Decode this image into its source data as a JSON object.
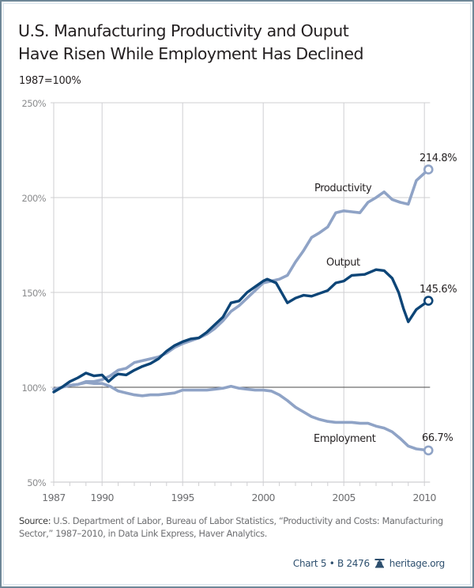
{
  "title_lines": [
    "U.S. Manufacturing Productivity and Ouput",
    "Have Risen While Employment Has Declined"
  ],
  "subtitle": "1987=100%",
  "colors": {
    "productivity": "#8fa3c6",
    "output": "#0d4577",
    "employment": "#8fa3c6",
    "grid": "#cfcfd2",
    "baseline": "#4a4a4a",
    "frame": "#6e8797",
    "footer": "#2d4f6e"
  },
  "chart_data": {
    "type": "line",
    "title": "U.S. Manufacturing Productivity and Ouput Have Risen While Employment Has Declined",
    "ylabel": "1987=100%",
    "xlabel": "",
    "xlim": [
      1987,
      2010.35
    ],
    "ylim": [
      50,
      250
    ],
    "grid": true,
    "x_ticks": [
      1987,
      1990,
      1995,
      2000,
      2005,
      2010
    ],
    "x_tick_labels": [
      "1987",
      "1990",
      "1995",
      "2000",
      "2005",
      "2010"
    ],
    "y_ticks": [
      50,
      100,
      150,
      200,
      250
    ],
    "y_tick_labels": [
      "50%",
      "100%",
      "150%",
      "200%",
      "250%"
    ],
    "reference_line": 100,
    "legend": "inline labels",
    "series": [
      {
        "name": "Productivity",
        "label": "Productivity",
        "end_label": "214.8%",
        "x": [
          1987,
          1987.5,
          1988,
          1988.5,
          1989,
          1989.5,
          1990,
          1990.5,
          1991,
          1991.5,
          1992,
          1992.5,
          1993,
          1993.5,
          1994,
          1994.5,
          1995,
          1995.5,
          1996,
          1996.5,
          1997,
          1997.5,
          1998,
          1998.5,
          1999,
          1999.5,
          2000,
          2000.5,
          2001,
          2001.5,
          2002,
          2002.5,
          2003,
          2003.5,
          2004,
          2004.5,
          2005,
          2005.5,
          2006,
          2006.5,
          2007,
          2007.5,
          2008,
          2008.5,
          2009,
          2009.5,
          2010.25
        ],
        "values": [
          99,
          100,
          101,
          101.5,
          103,
          103,
          104,
          106,
          109,
          110,
          113,
          114,
          115,
          116,
          118,
          121,
          123,
          124.5,
          126,
          128,
          131,
          135,
          140,
          143,
          147,
          151,
          155,
          156,
          157,
          159,
          166,
          172,
          179,
          181.5,
          184.5,
          192,
          193,
          192.5,
          192,
          197.5,
          200,
          203,
          199,
          197.5,
          196.5,
          209,
          214.8
        ]
      },
      {
        "name": "Output",
        "label": "Output",
        "end_label": "145.6%",
        "x": [
          1987,
          1987.5,
          1988,
          1988.5,
          1989,
          1989.5,
          1990,
          1990.4,
          1990.8,
          1991,
          1991.5,
          1992,
          1992.5,
          1993,
          1993.5,
          1994,
          1994.5,
          1995,
          1995.5,
          1996,
          1996.5,
          1997,
          1997.5,
          1998,
          1998.5,
          1999,
          1999.5,
          2000,
          2000.25,
          2000.8,
          2001.5,
          2002,
          2002.5,
          2003,
          2003.5,
          2004,
          2004.5,
          2005,
          2005.5,
          2006.3,
          2007,
          2007.5,
          2008,
          2008.4,
          2008.7,
          2009,
          2009.5,
          2010.25
        ],
        "values": [
          97.5,
          100,
          103,
          105,
          107.5,
          106,
          106.5,
          103,
          106,
          107,
          106.5,
          109,
          111,
          112.5,
          115,
          119,
          122,
          124,
          125.5,
          126,
          129,
          133,
          137,
          144.5,
          145.5,
          150,
          153,
          156,
          157,
          155,
          144.5,
          147,
          148.5,
          148,
          149.5,
          151,
          155,
          156,
          159,
          159.5,
          162,
          161.5,
          157.5,
          150,
          141.5,
          134.5,
          141,
          145.6
        ]
      },
      {
        "name": "Employment",
        "label": "Employment",
        "end_label": "66.7%",
        "x": [
          1987,
          1987.5,
          1988,
          1988.5,
          1989,
          1989.5,
          1990,
          1990.5,
          1991,
          1991.5,
          1992,
          1992.5,
          1993,
          1993.5,
          1994,
          1994.5,
          1995,
          1995.5,
          1996,
          1996.5,
          1997,
          1997.5,
          1998,
          1998.5,
          1999,
          1999.5,
          2000,
          2000.5,
          2001,
          2001.5,
          2002,
          2002.5,
          2003,
          2003.5,
          2004,
          2004.5,
          2005,
          2005.5,
          2006,
          2006.5,
          2007,
          2007.5,
          2008,
          2008.5,
          2009,
          2009.5,
          2010.25
        ],
        "values": [
          99,
          100,
          101,
          101.5,
          102.5,
          102,
          102,
          100.5,
          98,
          97,
          96,
          95.5,
          96,
          96,
          96.5,
          97,
          98.5,
          98.5,
          98.5,
          98.5,
          99,
          99.5,
          100.5,
          99.5,
          99,
          98.5,
          98.5,
          98,
          96,
          93,
          89.5,
          87,
          84.5,
          83,
          82,
          81.5,
          81.5,
          81.5,
          81,
          81,
          79.5,
          78.5,
          76.5,
          73,
          69,
          67.5,
          66.7
        ]
      }
    ]
  },
  "source": {
    "label": "Source:",
    "text": " U.S. Department of Labor, Bureau of Labor Statistics, “Productivity and Costs: Manufacturing Sector,” 1987–2010, in Data Link Express, Haver Analytics."
  },
  "footer": {
    "chart_id": "Chart 5 • B 2476",
    "icon": "liberty-bell-icon",
    "site": "heritage.org"
  }
}
